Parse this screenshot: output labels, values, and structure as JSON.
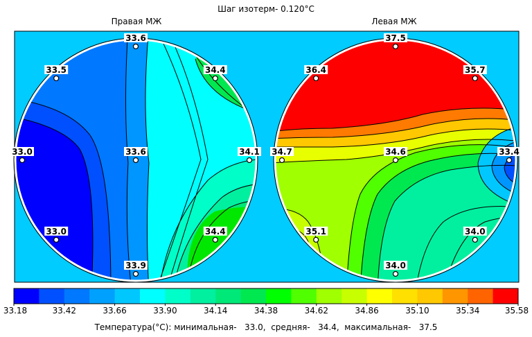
{
  "chart_data": {
    "type": "heatmap",
    "title": "Шаг изотерм- 0.120°C",
    "panels": [
      {
        "title": "Правая МЖ",
        "points": [
          {
            "pos": "top",
            "value": "33.6"
          },
          {
            "pos": "upper-left",
            "value": "33.5"
          },
          {
            "pos": "upper-right",
            "value": "34.4"
          },
          {
            "pos": "left",
            "value": "33.0"
          },
          {
            "pos": "center",
            "value": "33.6"
          },
          {
            "pos": "right",
            "value": "34.1"
          },
          {
            "pos": "lower-left",
            "value": "33.0"
          },
          {
            "pos": "lower-right",
            "value": "34.4"
          },
          {
            "pos": "bottom",
            "value": "33.9"
          }
        ]
      },
      {
        "title": "Левая МЖ",
        "points": [
          {
            "pos": "top",
            "value": "37.5"
          },
          {
            "pos": "upper-left",
            "value": "36.4"
          },
          {
            "pos": "upper-right",
            "value": "35.7"
          },
          {
            "pos": "left",
            "value": "34.7"
          },
          {
            "pos": "center",
            "value": "34.6"
          },
          {
            "pos": "right",
            "value": "33.4"
          },
          {
            "pos": "lower-left",
            "value": "35.1"
          },
          {
            "pos": "lower-right",
            "value": "34.0"
          },
          {
            "pos": "bottom",
            "value": "34.0"
          }
        ]
      }
    ],
    "scale": {
      "ticks": [
        "33.18",
        "33.42",
        "33.66",
        "33.90",
        "34.14",
        "34.38",
        "34.62",
        "34.86",
        "35.10",
        "35.34",
        "35.58"
      ],
      "colors": [
        "#0000ff",
        "#0050ff",
        "#0078ff",
        "#00a0ff",
        "#00c8ff",
        "#00ffff",
        "#00ffc8",
        "#00f0a0",
        "#00e878",
        "#00e850",
        "#00ff00",
        "#50ff00",
        "#a0ff00",
        "#c8ff00",
        "#ffff00",
        "#ffe000",
        "#ffc800",
        "#ff9600",
        "#ff6400",
        "#ff0000"
      ]
    },
    "caption": "Температура(°C): минимальная-   33.0,  средняя-   34.4,  максимальная-   37.5"
  },
  "colors": {
    "background": "#00ccff",
    "outline": "#ffffff"
  }
}
